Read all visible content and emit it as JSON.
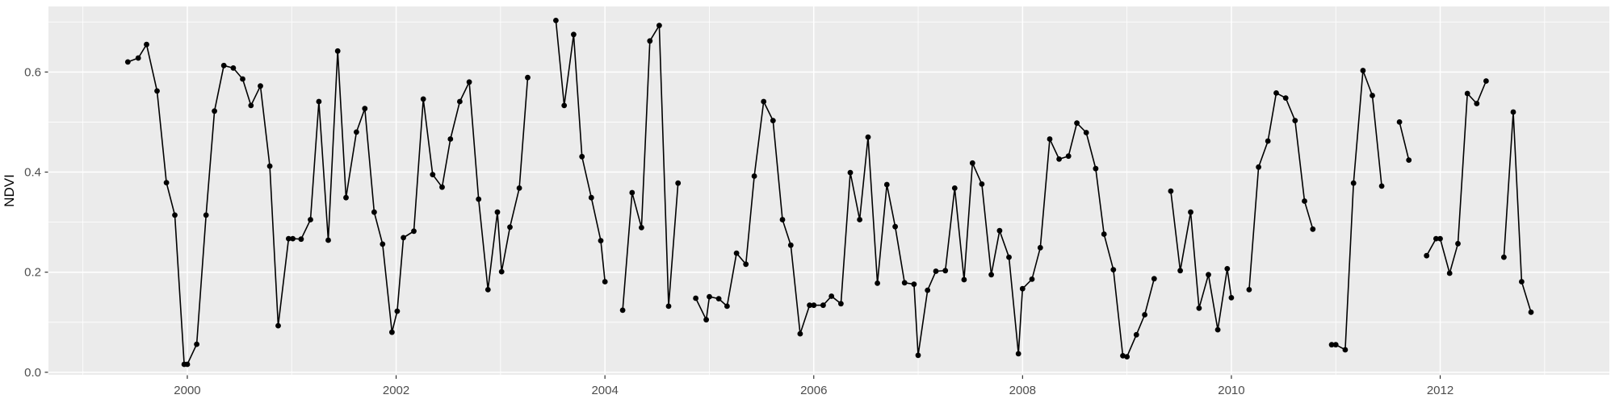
{
  "chart_data": {
    "type": "line",
    "title": "",
    "xlabel": "",
    "ylabel": "NDVI",
    "legend_position": "none",
    "grid": true,
    "point_style": "filled-circle",
    "x_domain": [
      1998.67,
      2013.62
    ],
    "y_domain": [
      -0.005,
      0.731
    ],
    "x_major_ticks": [
      {
        "value": 2000,
        "label": "2000"
      },
      {
        "value": 2002,
        "label": "2002"
      },
      {
        "value": 2004,
        "label": "2004"
      },
      {
        "value": 2006,
        "label": "2006"
      },
      {
        "value": 2008,
        "label": "2008"
      },
      {
        "value": 2010,
        "label": "2010"
      },
      {
        "value": 2012,
        "label": "2012"
      }
    ],
    "x_minor_gridlines": [
      1999,
      2001,
      2003,
      2005,
      2007,
      2009,
      2011,
      2013
    ],
    "y_major_ticks": [
      {
        "value": 0.0,
        "label": "0.0"
      },
      {
        "value": 0.2,
        "label": "0.2"
      },
      {
        "value": 0.4,
        "label": "0.4"
      },
      {
        "value": 0.6,
        "label": "0.6"
      }
    ],
    "y_minor_gridlines": [
      0.1,
      0.3,
      0.5,
      0.7
    ],
    "colors": {
      "outer_background": "#ffffff",
      "panel_background": "#ebebeb",
      "gridline": "#ffffff",
      "series": "#000000",
      "tick_text": "#4d4d4d",
      "tick_mark": "#333333",
      "axis_title": "#000000"
    },
    "series": [
      {
        "name": "NDVI",
        "segments": [
          [
            [
              1999.43,
              0.62
            ],
            [
              1999.53,
              0.628
            ],
            [
              1999.61,
              0.655
            ],
            [
              1999.71,
              0.562
            ],
            [
              1999.8,
              0.379
            ],
            [
              1999.88,
              0.314
            ],
            [
              1999.97,
              0.016
            ],
            [
              2000.0,
              0.016
            ],
            [
              2000.09,
              0.056
            ],
            [
              2000.18,
              0.314
            ],
            [
              2000.26,
              0.522
            ],
            [
              2000.35,
              0.613
            ],
            [
              2000.44,
              0.608
            ],
            [
              2000.53,
              0.586
            ],
            [
              2000.61,
              0.533
            ],
            [
              2000.7,
              0.572
            ],
            [
              2000.79,
              0.412
            ],
            [
              2000.87,
              0.093
            ],
            [
              2000.97,
              0.267
            ],
            [
              2001.01,
              0.267
            ],
            [
              2001.09,
              0.266
            ],
            [
              2001.18,
              0.305
            ],
            [
              2001.26,
              0.541
            ],
            [
              2001.35,
              0.264
            ],
            [
              2001.44,
              0.642
            ],
            [
              2001.52,
              0.349
            ],
            [
              2001.62,
              0.48
            ],
            [
              2001.7,
              0.527
            ],
            [
              2001.79,
              0.32
            ],
            [
              2001.87,
              0.256
            ],
            [
              2001.96,
              0.08
            ],
            [
              2002.01,
              0.122
            ],
            [
              2002.07,
              0.269
            ],
            [
              2002.17,
              0.282
            ],
            [
              2002.26,
              0.546
            ],
            [
              2002.35,
              0.395
            ],
            [
              2002.44,
              0.37
            ],
            [
              2002.52,
              0.466
            ],
            [
              2002.61,
              0.541
            ],
            [
              2002.7,
              0.58
            ],
            [
              2002.79,
              0.346
            ],
            [
              2002.88,
              0.165
            ],
            [
              2002.97,
              0.32
            ],
            [
              2003.01,
              0.201
            ],
            [
              2003.09,
              0.29
            ],
            [
              2003.18,
              0.368
            ],
            [
              2003.26,
              0.589
            ]
          ],
          [
            [
              2003.53,
              0.703
            ],
            [
              2003.61,
              0.533
            ],
            [
              2003.7,
              0.675
            ],
            [
              2003.78,
              0.431
            ],
            [
              2003.87,
              0.349
            ],
            [
              2003.96,
              0.263
            ],
            [
              2004.0,
              0.181
            ]
          ],
          [
            [
              2004.17,
              0.124
            ],
            [
              2004.26,
              0.359
            ],
            [
              2004.35,
              0.289
            ],
            [
              2004.43,
              0.662
            ],
            [
              2004.52,
              0.693
            ],
            [
              2004.61,
              0.132
            ],
            [
              2004.7,
              0.378
            ]
          ],
          [
            [
              2004.87,
              0.148
            ],
            [
              2004.97,
              0.105
            ],
            [
              2005.0,
              0.151
            ],
            [
              2005.09,
              0.147
            ],
            [
              2005.17,
              0.132
            ],
            [
              2005.26,
              0.238
            ],
            [
              2005.35,
              0.216
            ],
            [
              2005.43,
              0.392
            ],
            [
              2005.52,
              0.541
            ],
            [
              2005.61,
              0.503
            ],
            [
              2005.7,
              0.305
            ],
            [
              2005.78,
              0.254
            ],
            [
              2005.87,
              0.077
            ],
            [
              2005.96,
              0.134
            ],
            [
              2006.0,
              0.134
            ],
            [
              2006.09,
              0.134
            ],
            [
              2006.17,
              0.152
            ],
            [
              2006.26,
              0.137
            ],
            [
              2006.35,
              0.399
            ],
            [
              2006.44,
              0.305
            ],
            [
              2006.52,
              0.47
            ],
            [
              2006.61,
              0.178
            ],
            [
              2006.7,
              0.375
            ],
            [
              2006.78,
              0.291
            ],
            [
              2006.87,
              0.179
            ],
            [
              2006.96,
              0.176
            ],
            [
              2007.0,
              0.034
            ],
            [
              2007.09,
              0.164
            ],
            [
              2007.17,
              0.202
            ],
            [
              2007.26,
              0.203
            ],
            [
              2007.35,
              0.368
            ],
            [
              2007.44,
              0.185
            ],
            [
              2007.52,
              0.418
            ],
            [
              2007.61,
              0.376
            ],
            [
              2007.7,
              0.195
            ],
            [
              2007.78,
              0.283
            ],
            [
              2007.87,
              0.23
            ],
            [
              2007.96,
              0.037
            ],
            [
              2008.0,
              0.167
            ],
            [
              2008.09,
              0.186
            ],
            [
              2008.17,
              0.249
            ],
            [
              2008.26,
              0.466
            ],
            [
              2008.35,
              0.426
            ],
            [
              2008.44,
              0.432
            ],
            [
              2008.52,
              0.498
            ],
            [
              2008.61,
              0.479
            ],
            [
              2008.7,
              0.407
            ],
            [
              2008.78,
              0.276
            ],
            [
              2008.87,
              0.205
            ],
            [
              2008.96,
              0.033
            ],
            [
              2009.0,
              0.031
            ],
            [
              2009.09,
              0.075
            ],
            [
              2009.17,
              0.115
            ],
            [
              2009.26,
              0.187
            ]
          ],
          [
            [
              2009.42,
              0.362
            ],
            [
              2009.51,
              0.203
            ],
            [
              2009.61,
              0.32
            ],
            [
              2009.69,
              0.128
            ],
            [
              2009.78,
              0.195
            ],
            [
              2009.87,
              0.085
            ],
            [
              2009.96,
              0.207
            ],
            [
              2010.0,
              0.149
            ]
          ],
          [
            [
              2010.17,
              0.165
            ],
            [
              2010.26,
              0.41
            ],
            [
              2010.35,
              0.462
            ],
            [
              2010.43,
              0.558
            ],
            [
              2010.52,
              0.548
            ],
            [
              2010.61,
              0.503
            ],
            [
              2010.7,
              0.342
            ],
            [
              2010.78,
              0.286
            ]
          ],
          [
            [
              2010.96,
              0.055
            ],
            [
              2011.0,
              0.055
            ],
            [
              2011.09,
              0.045
            ],
            [
              2011.17,
              0.378
            ],
            [
              2011.26,
              0.603
            ],
            [
              2011.35,
              0.553
            ],
            [
              2011.44,
              0.372
            ]
          ],
          [
            [
              2011.61,
              0.5
            ],
            [
              2011.7,
              0.424
            ]
          ],
          [
            [
              2011.87,
              0.233
            ],
            [
              2011.96,
              0.267
            ],
            [
              2012.0,
              0.267
            ],
            [
              2012.09,
              0.198
            ],
            [
              2012.17,
              0.257
            ],
            [
              2012.26,
              0.557
            ],
            [
              2012.35,
              0.537
            ],
            [
              2012.44,
              0.582
            ]
          ],
          [
            [
              2012.61,
              0.23
            ],
            [
              2012.7,
              0.52
            ],
            [
              2012.78,
              0.181
            ],
            [
              2012.87,
              0.12
            ]
          ]
        ]
      }
    ]
  }
}
